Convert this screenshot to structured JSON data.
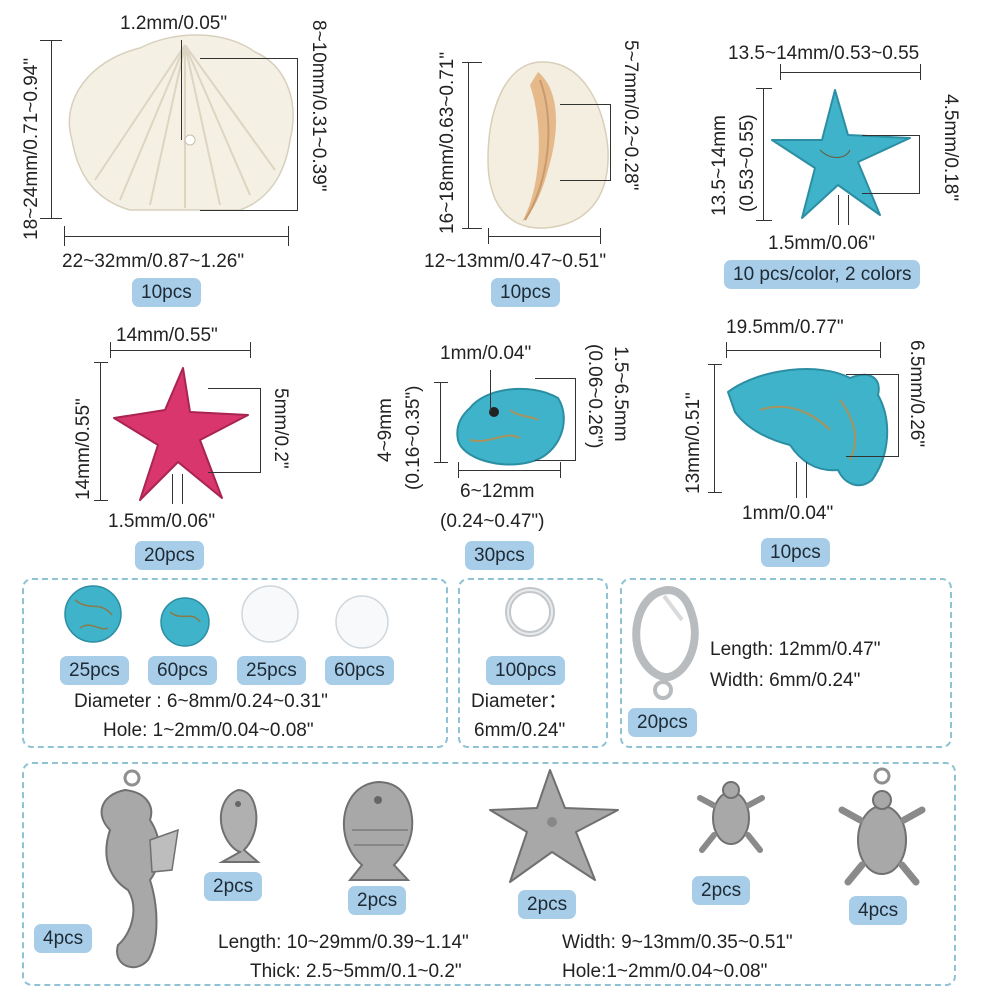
{
  "shell": {
    "dims": {
      "hole": "1.2mm/0.05\"",
      "height": "8~10mm/0.31~0.39\"",
      "side": "18~24mm/0.71~0.94\"",
      "width": "22~32mm/0.87~1.26\""
    },
    "qty": "10pcs"
  },
  "cowrie": {
    "dims": {
      "height": "16~18mm/0.63~0.71\"",
      "opening": "5~7mm/0.2~0.28\"",
      "width": "12~13mm/0.47~0.51\""
    },
    "qty": "10pcs"
  },
  "blue_starfish": {
    "dims": {
      "width": "13.5~14mm/0.53~0.55",
      "height_a": "13.5~14mm",
      "height_b": "(0.53~0.55)",
      "thick": "4.5mm/0.18\"",
      "hole": "1.5mm/0.06\""
    },
    "qty": "10 pcs/color, 2 colors"
  },
  "pink_starfish": {
    "dims": {
      "width": "14mm/0.55\"",
      "height": "14mm/0.55\"",
      "thick": "5mm/0.2\"",
      "hole": "1.5mm/0.06\""
    },
    "qty": "20pcs"
  },
  "chip": {
    "dims": {
      "hole": "1mm/0.04\"",
      "size_a": "4~9mm",
      "size_b": "(0.16~0.35\")",
      "thick_a": "1.5~6.5mm",
      "thick_b": "(0.06~0.26\")",
      "width_a": "6~12mm",
      "width_b": "(0.24~0.47\")"
    },
    "qty": "30pcs"
  },
  "dolphin": {
    "dims": {
      "width": "19.5mm/0.77\"",
      "height": "13mm/0.51\"",
      "thick": "6.5mm/0.26\"",
      "hole": "1mm/0.04\""
    },
    "qty": "10pcs"
  },
  "beads": {
    "qty": [
      "25pcs",
      "60pcs",
      "25pcs",
      "60pcs"
    ],
    "diameter": "Diameter : 6~8mm/0.24~0.31\"",
    "hole": "Hole: 1~2mm/0.04~0.08\""
  },
  "jump_rings": {
    "qty": "100pcs",
    "diameter_label": "Diameter：",
    "diameter_value": "6mm/0.24\""
  },
  "clasp": {
    "qty": "20pcs",
    "length": "Length: 12mm/0.47\"",
    "width": "Width: 6mm/0.24\""
  },
  "charms": {
    "qty": [
      "4pcs",
      "2pcs",
      "2pcs",
      "2pcs",
      "2pcs",
      "4pcs"
    ],
    "length": "Length: 10~29mm/0.39~1.14\"",
    "width": "Width: 9~13mm/0.35~0.51\"",
    "thick": "Thick: 2.5~5mm/0.1~0.2\"",
    "hole": "Hole:1~2mm/0.04~0.08\""
  },
  "colors": {
    "turquoise": "#3fb3c9",
    "pink": "#d9366e",
    "shell": "#f5f1e6",
    "badge": "#a7cde8",
    "silver": "#9a9a9a"
  }
}
